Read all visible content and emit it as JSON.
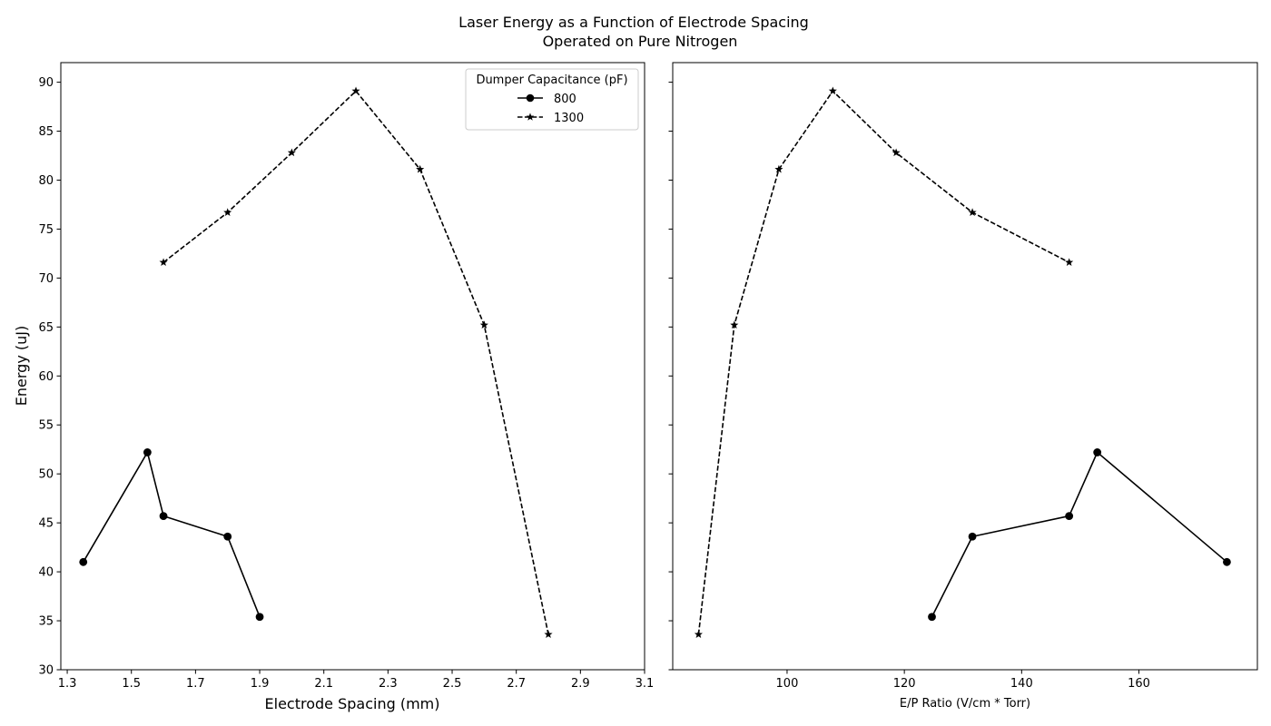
{
  "title": {
    "line1": "Laser Energy as a Function of Electrode Spacing",
    "line2": "Operated on Pure Nitrogen"
  },
  "colors": {
    "line": "#000000",
    "frame": "#000000",
    "background": "#ffffff"
  },
  "chart_data": [
    {
      "type": "line",
      "xlabel": "Electrode Spacing (mm)",
      "ylabel": "Energy (uJ)",
      "xlim": [
        1.28,
        3.1
      ],
      "ylim": [
        30,
        92
      ],
      "xticks": [
        "1.3",
        "1.5",
        "1.7",
        "1.9",
        "2.1",
        "2.3",
        "2.5",
        "2.7",
        "2.9",
        "3.1"
      ],
      "yticks": [
        "30",
        "35",
        "40",
        "45",
        "50",
        "55",
        "60",
        "65",
        "70",
        "75",
        "80",
        "85",
        "90"
      ],
      "grid": false,
      "legend": {
        "title": "Dumper Capacitance (pF)",
        "placement": "upper right",
        "entries": [
          "800",
          "1300"
        ]
      },
      "series": [
        {
          "name": "800",
          "marker": "circle",
          "linestyle": "solid",
          "x": [
            1.35,
            1.55,
            1.6,
            1.8,
            1.9
          ],
          "y": [
            41.0,
            52.2,
            45.7,
            43.6,
            35.4
          ]
        },
        {
          "name": "1300",
          "marker": "star",
          "linestyle": "dashed",
          "x": [
            1.6,
            1.8,
            2.0,
            2.2,
            2.4,
            2.6,
            2.8
          ],
          "y": [
            71.6,
            76.7,
            82.8,
            89.1,
            81.1,
            65.2,
            33.6
          ]
        }
      ]
    },
    {
      "type": "line",
      "xlabel": "E/P Ratio (V/cm * Torr)",
      "ylabel": "",
      "xlim": [
        80.5,
        180.2
      ],
      "ylim": [
        30,
        92
      ],
      "xticks": [
        "100",
        "120",
        "140",
        "160"
      ],
      "yticks": [],
      "grid": false,
      "series": [
        {
          "name": "800",
          "marker": "circle",
          "linestyle": "solid",
          "x": [
            124.7,
            131.6,
            148.1,
            152.9,
            175.0
          ],
          "y": [
            35.4,
            43.6,
            45.7,
            52.2,
            41.0
          ]
        },
        {
          "name": "1300",
          "marker": "star",
          "linestyle": "dashed",
          "x": [
            84.9,
            91.0,
            98.6,
            107.8,
            118.6,
            131.6,
            148.1
          ],
          "y": [
            33.6,
            65.2,
            81.1,
            89.1,
            82.8,
            76.7,
            71.6
          ]
        }
      ]
    }
  ]
}
